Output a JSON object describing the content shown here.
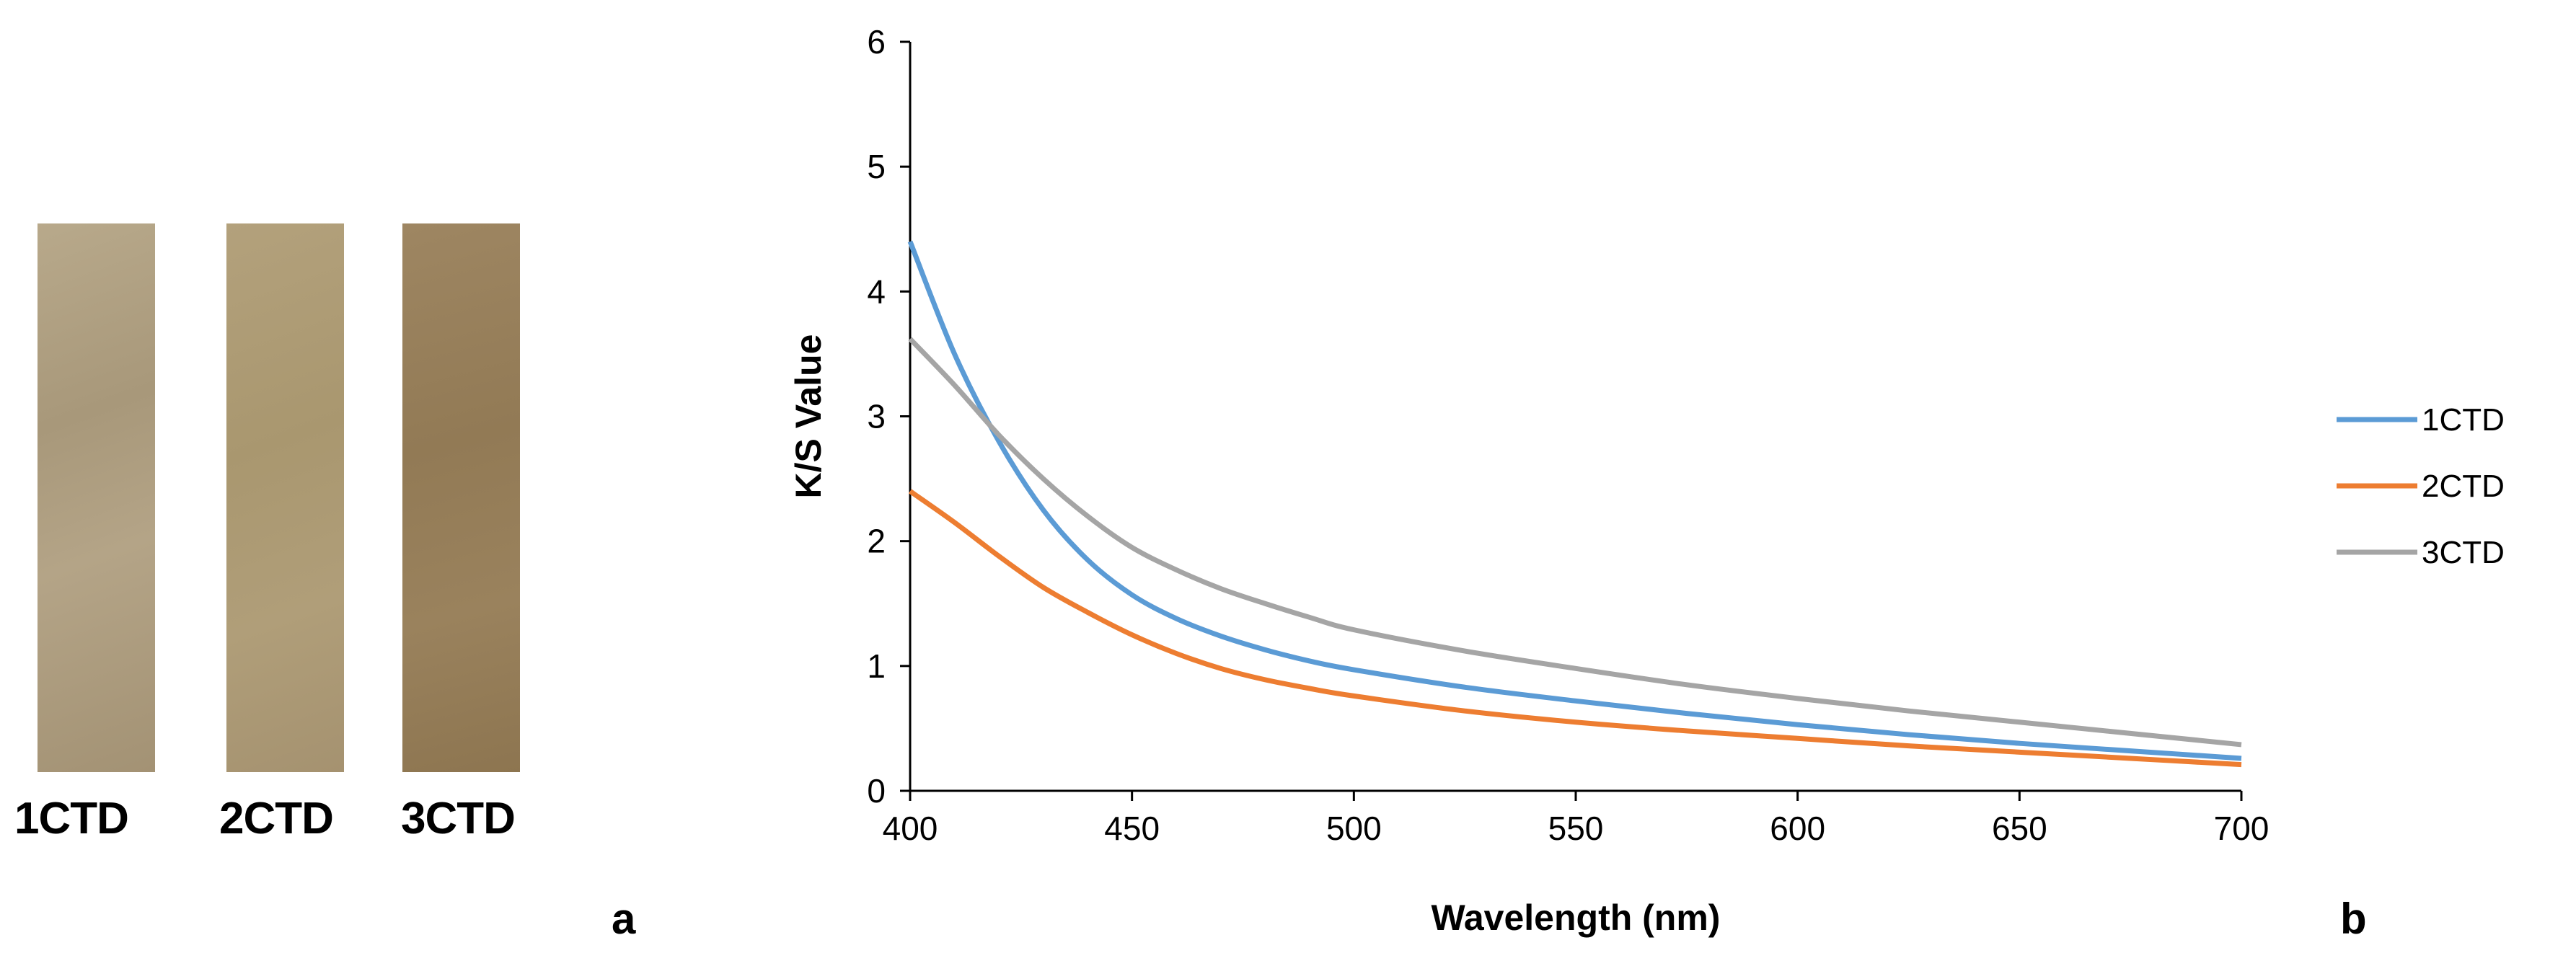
{
  "left_panel": {
    "swatches": [
      {
        "label": "1CTD",
        "color": "#b1a182"
      },
      {
        "label": "2CTD",
        "color": "#ac9a75"
      },
      {
        "label": "3CTD",
        "color": "#967e59"
      }
    ],
    "panel_label": "a"
  },
  "chart_panel_label": "b",
  "chart_data": {
    "type": "line",
    "title": "",
    "xlabel": "Wavelength (nm)",
    "ylabel": "K/S Value",
    "xlim": [
      400,
      700
    ],
    "ylim": [
      0,
      6
    ],
    "xticks": [
      400,
      450,
      500,
      550,
      600,
      650,
      700
    ],
    "yticks": [
      0,
      1,
      2,
      3,
      4,
      5,
      6
    ],
    "grid": false,
    "legend_position": "right",
    "x": [
      400,
      410,
      420,
      430,
      440,
      450,
      460,
      470,
      480,
      490,
      500,
      525,
      550,
      575,
      600,
      625,
      650,
      675,
      700
    ],
    "series": [
      {
        "name": "1CTD",
        "color": "#5b9bd5",
        "values": [
          4.4,
          3.5,
          2.8,
          2.25,
          1.85,
          1.57,
          1.38,
          1.24,
          1.13,
          1.04,
          0.97,
          0.83,
          0.72,
          0.62,
          0.53,
          0.45,
          0.38,
          0.32,
          0.26
        ]
      },
      {
        "name": "2CTD",
        "color": "#ed7d31",
        "values": [
          2.4,
          2.15,
          1.88,
          1.63,
          1.43,
          1.25,
          1.1,
          0.98,
          0.89,
          0.82,
          0.76,
          0.64,
          0.55,
          0.48,
          0.42,
          0.36,
          0.31,
          0.26,
          0.21
        ]
      },
      {
        "name": "3CTD",
        "color": "#a5a5a5",
        "values": [
          3.62,
          3.25,
          2.85,
          2.5,
          2.2,
          1.95,
          1.77,
          1.62,
          1.5,
          1.39,
          1.29,
          1.12,
          0.98,
          0.85,
          0.74,
          0.64,
          0.55,
          0.46,
          0.37
        ]
      }
    ]
  }
}
